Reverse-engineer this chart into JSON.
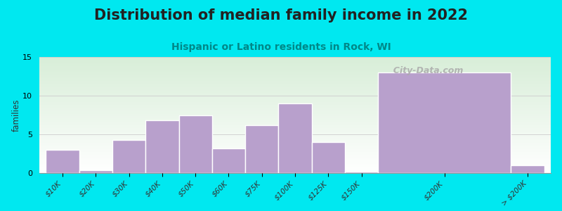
{
  "title": "Distribution of median family income in 2022",
  "subtitle": "Hispanic or Latino residents in Rock, WI",
  "categories": [
    "$10K",
    "$20K",
    "$30K",
    "$40K",
    "$50K",
    "$60K",
    "$75K",
    "$100K",
    "$125K",
    "$150K",
    "$200K",
    "> $200K"
  ],
  "values": [
    3.0,
    0.4,
    4.3,
    6.8,
    7.5,
    3.2,
    6.2,
    9.0,
    4.0,
    0.2,
    13.0,
    1.0
  ],
  "bar_widths": [
    1,
    1,
    1,
    1,
    1,
    1,
    1,
    1,
    1,
    1,
    4,
    1
  ],
  "bar_lefts": [
    0,
    1,
    2,
    3,
    4,
    5,
    6,
    7,
    8,
    9,
    10,
    14
  ],
  "bar_color": "#b8a0cc",
  "bar_edge_color": "#ffffff",
  "background_color": "#00e8f0",
  "ylabel": "families",
  "ylim": [
    0,
    15
  ],
  "yticks": [
    0,
    5,
    10,
    15
  ],
  "title_fontsize": 15,
  "subtitle_fontsize": 10,
  "subtitle_color": "#008888",
  "watermark": "  City-Data.com",
  "xlim": [
    -0.2,
    15.2
  ],
  "tick_positions": [
    0.5,
    1.5,
    2.5,
    3.5,
    4.5,
    5.5,
    6.5,
    7.5,
    8.5,
    9.5,
    12.0,
    14.5
  ],
  "tick_labels": [
    "$10K",
    "$20K",
    "$30K",
    "$40K",
    "$50K",
    "$60K",
    "$75K",
    "$100K",
    "$125K",
    "$150K",
    "$200K",
    "> $200K"
  ]
}
